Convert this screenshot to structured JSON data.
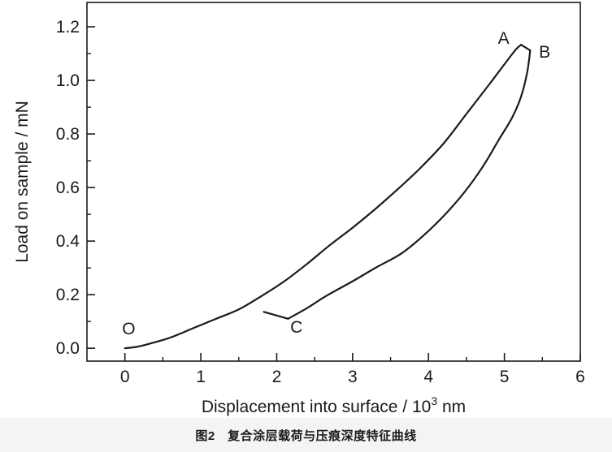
{
  "figure": {
    "caption": "图2　复合涂层载荷与压痕深度特征曲线",
    "line_color": "#1b1b1b",
    "background_color": "#ffffff",
    "caption_band_color": "#f4f4f4"
  },
  "chart_data": {
    "type": "line",
    "title": "",
    "xlabel": "Displacement into surface / 10^3 nm",
    "xlabel_main": "Displacement into surface / 10",
    "xlabel_sup": "3",
    "xlabel_tail": " nm",
    "ylabel": "Load on sample / mN",
    "xlim": [
      -0.5,
      6.0
    ],
    "ylim": [
      -0.048,
      1.291
    ],
    "grid": false,
    "legend": false,
    "x_ticks": [
      0,
      1,
      2,
      3,
      4,
      5,
      6
    ],
    "x_tick_labels": [
      "0",
      "1",
      "2",
      "3",
      "4",
      "5",
      "6"
    ],
    "x_minor_ticks": [
      0.5,
      1.5,
      2.5,
      3.5,
      4.5,
      5.5
    ],
    "y_ticks": [
      0.0,
      0.2,
      0.4,
      0.6,
      0.8,
      1.0,
      1.2
    ],
    "y_tick_labels": [
      "0.0",
      "0.2",
      "0.4",
      "0.6",
      "0.8",
      "1.0",
      "1.2"
    ],
    "y_minor_ticks": [
      0.1,
      0.3,
      0.5,
      0.7,
      0.9,
      1.1
    ],
    "series": [
      {
        "name": "loading-curve-O-to-A",
        "points": [
          [
            0.0,
            0.0
          ],
          [
            0.15,
            0.005
          ],
          [
            0.3,
            0.015
          ],
          [
            0.6,
            0.04
          ],
          [
            0.9,
            0.075
          ],
          [
            1.2,
            0.11
          ],
          [
            1.5,
            0.145
          ],
          [
            1.8,
            0.195
          ],
          [
            2.1,
            0.25
          ],
          [
            2.4,
            0.315
          ],
          [
            2.7,
            0.385
          ],
          [
            3.0,
            0.45
          ],
          [
            3.3,
            0.52
          ],
          [
            3.6,
            0.595
          ],
          [
            3.9,
            0.675
          ],
          [
            4.2,
            0.765
          ],
          [
            4.5,
            0.875
          ],
          [
            4.8,
            0.985
          ],
          [
            5.0,
            1.06
          ],
          [
            5.15,
            1.115
          ],
          [
            5.22,
            1.133
          ]
        ]
      },
      {
        "name": "hold-segment-A-to-B",
        "points": [
          [
            5.22,
            1.133
          ],
          [
            5.34,
            1.112
          ]
        ]
      },
      {
        "name": "unloading-curve-B-to-C",
        "points": [
          [
            5.34,
            1.112
          ],
          [
            5.3,
            1.03
          ],
          [
            5.22,
            0.94
          ],
          [
            5.1,
            0.86
          ],
          [
            4.93,
            0.78
          ],
          [
            4.72,
            0.68
          ],
          [
            4.48,
            0.585
          ],
          [
            4.22,
            0.5
          ],
          [
            3.95,
            0.425
          ],
          [
            3.65,
            0.355
          ],
          [
            3.3,
            0.3
          ],
          [
            3.0,
            0.25
          ],
          [
            2.65,
            0.195
          ],
          [
            2.4,
            0.15
          ],
          [
            2.15,
            0.11
          ]
        ]
      },
      {
        "name": "final-unload-tail-at-C",
        "points": [
          [
            2.15,
            0.11
          ],
          [
            1.83,
            0.136
          ]
        ]
      }
    ],
    "annotations": [
      {
        "text": "O",
        "x": 0.05,
        "y": 0.073
      },
      {
        "text": "A",
        "x": 4.99,
        "y": 1.158
      },
      {
        "text": "B",
        "x": 5.53,
        "y": 1.106
      },
      {
        "text": "C",
        "x": 2.26,
        "y": 0.079
      }
    ],
    "key_points": {
      "O": [
        0.0,
        0.0
      ],
      "A": [
        5.22,
        1.133
      ],
      "B": [
        5.34,
        1.112
      ],
      "C": [
        2.15,
        0.11
      ]
    }
  }
}
